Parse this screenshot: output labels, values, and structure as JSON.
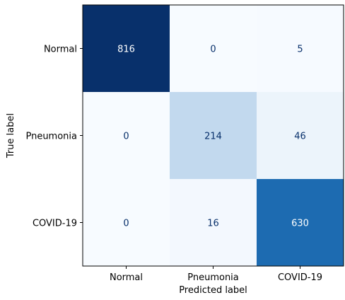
{
  "chart_data": {
    "type": "heatmap",
    "title": "",
    "xlabel": "Predicted label",
    "ylabel": "True label",
    "x_categories": [
      "Normal",
      "Pneumonia",
      "COVID-19"
    ],
    "y_categories": [
      "Normal",
      "Pneumonia",
      "COVID-19"
    ],
    "matrix": [
      [
        816,
        0,
        5
      ],
      [
        0,
        214,
        46
      ],
      [
        0,
        16,
        630
      ]
    ],
    "colormap": "Blues",
    "vmin": 0,
    "vmax": 816,
    "colors": {
      "low": "#f7fbff",
      "high": "#08306b",
      "text_dark": "#08306b",
      "text_light": "#ffffff"
    }
  }
}
